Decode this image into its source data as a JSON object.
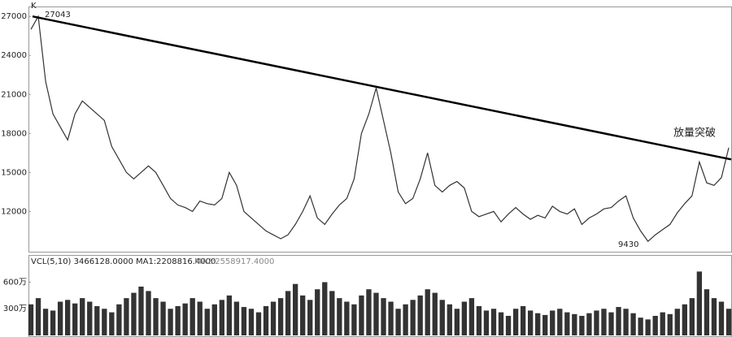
{
  "chart_data": [
    {
      "type": "line",
      "title": "K",
      "annotations": [
        "27043",
        "9430",
        "放量突破"
      ],
      "ylim": [
        8900,
        27700
      ],
      "yticks": [
        12000,
        15000,
        18000,
        21000,
        24000,
        27000
      ],
      "trendline": [
        27000,
        16000
      ],
      "series": [
        {
          "color": "#333333",
          "values": [
            26000,
            27000,
            22000,
            19500,
            18500,
            17500,
            19500,
            20500,
            20000,
            19500,
            19000,
            17000,
            16000,
            15000,
            14500,
            15000,
            15500,
            15000,
            14000,
            13000,
            12500,
            12300,
            12000,
            12800,
            12600,
            12500,
            13000,
            15000,
            14000,
            12000,
            11500,
            11000,
            10500,
            10200,
            9900,
            10200,
            11000,
            12000,
            13200,
            11500,
            11000,
            11800,
            12500,
            13000,
            14500,
            18000,
            19500,
            21500,
            19000,
            16500,
            13500,
            12600,
            13000,
            14500,
            16500,
            14000,
            13500,
            14000,
            14300,
            13800,
            12000,
            11600,
            11800,
            12000,
            11200,
            11800,
            12300,
            11800,
            11400,
            11700,
            11500,
            12400,
            12000,
            11800,
            12200,
            11000,
            11500,
            11800,
            12200,
            12300,
            12800,
            13200,
            11500,
            10500,
            9700,
            10200,
            10600,
            11000,
            11900,
            12600,
            13200,
            15800,
            14200,
            14000,
            14600,
            16900
          ]
        }
      ]
    },
    {
      "type": "bar",
      "title": "VCL(5,10) 3466128.0000 MA1:2208816.4000",
      "subtitle": "MA2:2558917.4000",
      "ylim": [
        0,
        760
      ],
      "yticks": [
        {
          "value": 300,
          "label": "300万"
        },
        {
          "value": 600,
          "label": "600万"
        }
      ],
      "series": [
        {
          "color": "#333333",
          "values": [
            350,
            420,
            300,
            280,
            380,
            400,
            360,
            420,
            380,
            330,
            300,
            260,
            350,
            420,
            480,
            550,
            500,
            420,
            380,
            300,
            330,
            360,
            420,
            380,
            300,
            350,
            400,
            450,
            380,
            320,
            300,
            260,
            330,
            380,
            420,
            500,
            580,
            450,
            400,
            520,
            600,
            500,
            420,
            380,
            350,
            450,
            520,
            480,
            420,
            380,
            300,
            350,
            400,
            450,
            520,
            480,
            400,
            350,
            300,
            380,
            420,
            330,
            280,
            300,
            260,
            220,
            300,
            330,
            280,
            250,
            230,
            280,
            300,
            260,
            240,
            220,
            250,
            280,
            300,
            260,
            320,
            300,
            250,
            200,
            180,
            220,
            260,
            240,
            300,
            350,
            420,
            720,
            520,
            420,
            380,
            300
          ]
        }
      ]
    }
  ]
}
